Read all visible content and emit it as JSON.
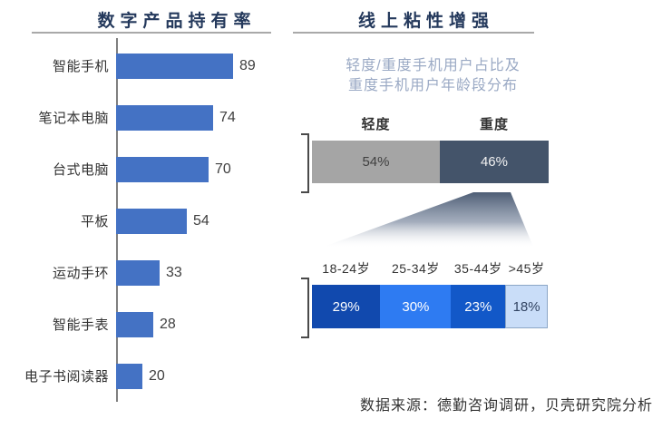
{
  "left_panel": {
    "title": "数字产品持有率"
  },
  "right_panel": {
    "title": "线上粘性增强",
    "subtitle_lines": [
      "轻度/重度手机用户占比及",
      "重度手机用户年龄段分布"
    ]
  },
  "footer": {
    "text": "数据来源：德勤咨询调研，贝壳研究院分析"
  },
  "colors": {
    "bar_blue": "#4472C4",
    "title_navy": "#24395C",
    "subtitle_gray_blue": "#9AA9C4",
    "light_user_gray": "#A5A5A5",
    "light_user_text": "#404040",
    "heavy_user_slate": "#44546A",
    "heavy_user_text": "#F2F2F2",
    "age_segment_colors": [
      "#1149AE",
      "#2E7BF2",
      "#1258C8",
      "#C9DDF8"
    ],
    "age_text_colors": [
      "#FFFFFF",
      "#FFFFFF",
      "#FFFFFF",
      "#324462"
    ],
    "age_light_segment_border": "#8CA6C6",
    "funnel_top": "#4D5D75",
    "funnel_bottom": "#FDFDFE"
  },
  "chart_data": [
    {
      "type": "bar",
      "orientation": "horizontal",
      "title": "数字产品持有率",
      "categories": [
        "智能手机",
        "笔记本电脑",
        "台式电脑",
        "平板",
        "运动手环",
        "智能手表",
        "电子书阅读器"
      ],
      "values": [
        89,
        74,
        70,
        54,
        33,
        28,
        20
      ],
      "xlabel": "",
      "ylabel": "",
      "xlim": [
        0,
        100
      ],
      "grid": false,
      "data_labels": true
    },
    {
      "type": "bar",
      "subtype": "stacked-100-percent",
      "title": "轻度/重度手机用户占比",
      "segments": [
        {
          "label": "轻度",
          "value": 54,
          "value_label": "54%"
        },
        {
          "label": "重度",
          "value": 46,
          "value_label": "46%"
        }
      ],
      "unit": "%",
      "legend_position": "above-segments"
    },
    {
      "type": "bar",
      "subtype": "stacked-100-percent",
      "title": "重度手机用户年龄段分布",
      "segments": [
        {
          "label": "18-24岁",
          "value": 29,
          "value_label": "29%"
        },
        {
          "label": "25-34岁",
          "value": 30,
          "value_label": "30%"
        },
        {
          "label": "35-44岁",
          "value": 23,
          "value_label": "23%"
        },
        {
          "label": ">45岁",
          "value": 18,
          "value_label": "18%"
        }
      ],
      "unit": "%",
      "legend_position": "above-segments"
    }
  ]
}
